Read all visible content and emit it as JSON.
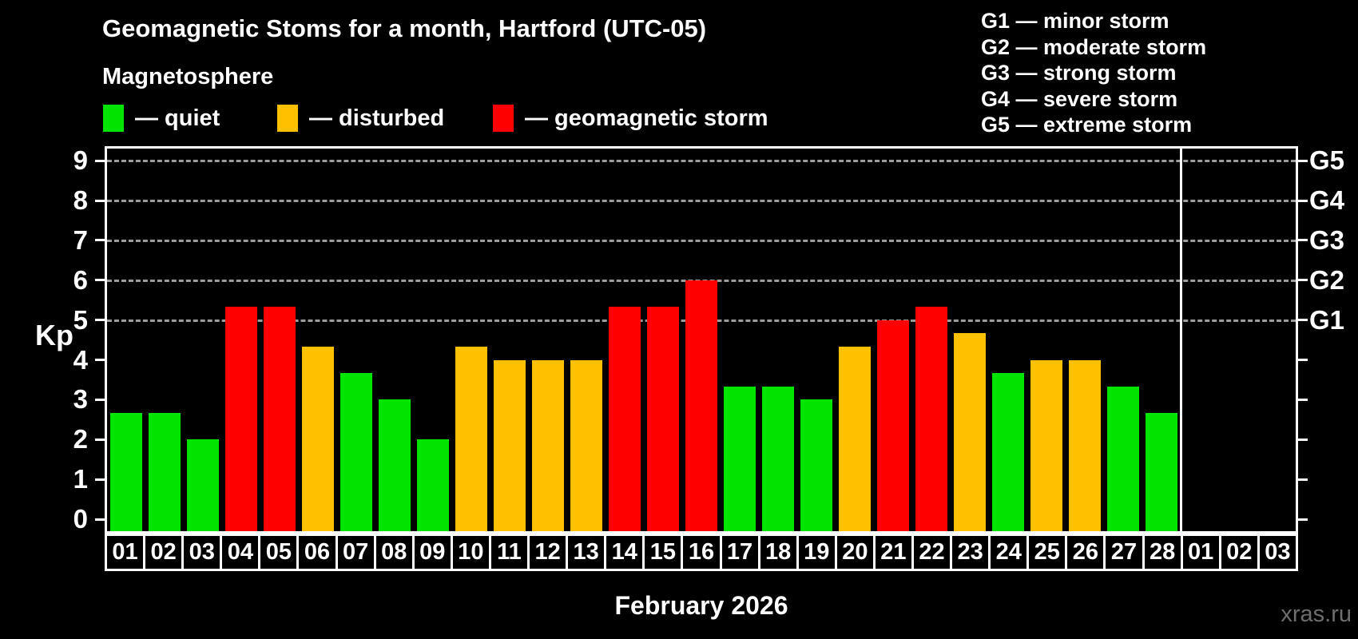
{
  "title": "Geomagnetic Stoms for a month, Hartford (UTC-05)",
  "subtitle": "Magnetosphere",
  "kp_legend": [
    {
      "key": "quiet",
      "label": "— quiet",
      "color": "#00e400"
    },
    {
      "key": "disturbed",
      "label": "— disturbed",
      "color": "#ffc000"
    },
    {
      "key": "storm",
      "label": "— geomagnetic storm",
      "color": "#ff0000"
    }
  ],
  "g_legend": [
    "G1 — minor storm",
    "G2 — moderate storm",
    "G3 — strong storm",
    "G4 — severe storm",
    "G5 — extreme storm"
  ],
  "watermark": "xras.ru",
  "colors": {
    "background": "#000000",
    "axis": "#ffffff",
    "grid": "#9c9c9c",
    "text": "#ffffff",
    "watermark": "#6e6e6e"
  },
  "chart_data": {
    "type": "bar",
    "title": "Geomagnetic Stoms for a month, Hartford (UTC-05)",
    "xlabel": "February 2026",
    "ylabel": "Kp",
    "ylim": [
      0,
      9
    ],
    "y_ticks": [
      0,
      1,
      2,
      3,
      4,
      5,
      6,
      7,
      8,
      9
    ],
    "gridlines_kp": [
      5,
      6,
      7,
      8,
      9
    ],
    "grid": "dashed, only at G-storm levels 5-9",
    "legend_position": "top-left",
    "right_axis_labels": [
      {
        "kp": 5,
        "label": "G1"
      },
      {
        "kp": 6,
        "label": "G2"
      },
      {
        "kp": 7,
        "label": "G3"
      },
      {
        "kp": 8,
        "label": "G4"
      },
      {
        "kp": 9,
        "label": "G5"
      }
    ],
    "categories": [
      "01",
      "02",
      "03",
      "04",
      "05",
      "06",
      "07",
      "08",
      "09",
      "10",
      "11",
      "12",
      "13",
      "14",
      "15",
      "16",
      "17",
      "18",
      "19",
      "20",
      "21",
      "22",
      "23",
      "24",
      "25",
      "26",
      "27",
      "28",
      "01",
      "02",
      "03"
    ],
    "values": [
      2.67,
      2.67,
      2,
      5.33,
      5.33,
      4.33,
      3.67,
      3,
      2,
      4.33,
      4,
      4,
      4,
      5.33,
      5.33,
      6,
      3.33,
      3.33,
      3,
      4.33,
      5,
      5.33,
      4.67,
      3.67,
      4,
      4,
      3.33,
      2.67,
      null,
      null,
      null
    ],
    "separator_after_index": 27,
    "color_bands": [
      {
        "name": "quiet",
        "below_kp": 4,
        "color": "#00e400"
      },
      {
        "name": "disturbed",
        "below_kp": 5,
        "color": "#ffc000"
      },
      {
        "name": "storm",
        "below_kp": 10,
        "color": "#ff0000"
      }
    ]
  }
}
